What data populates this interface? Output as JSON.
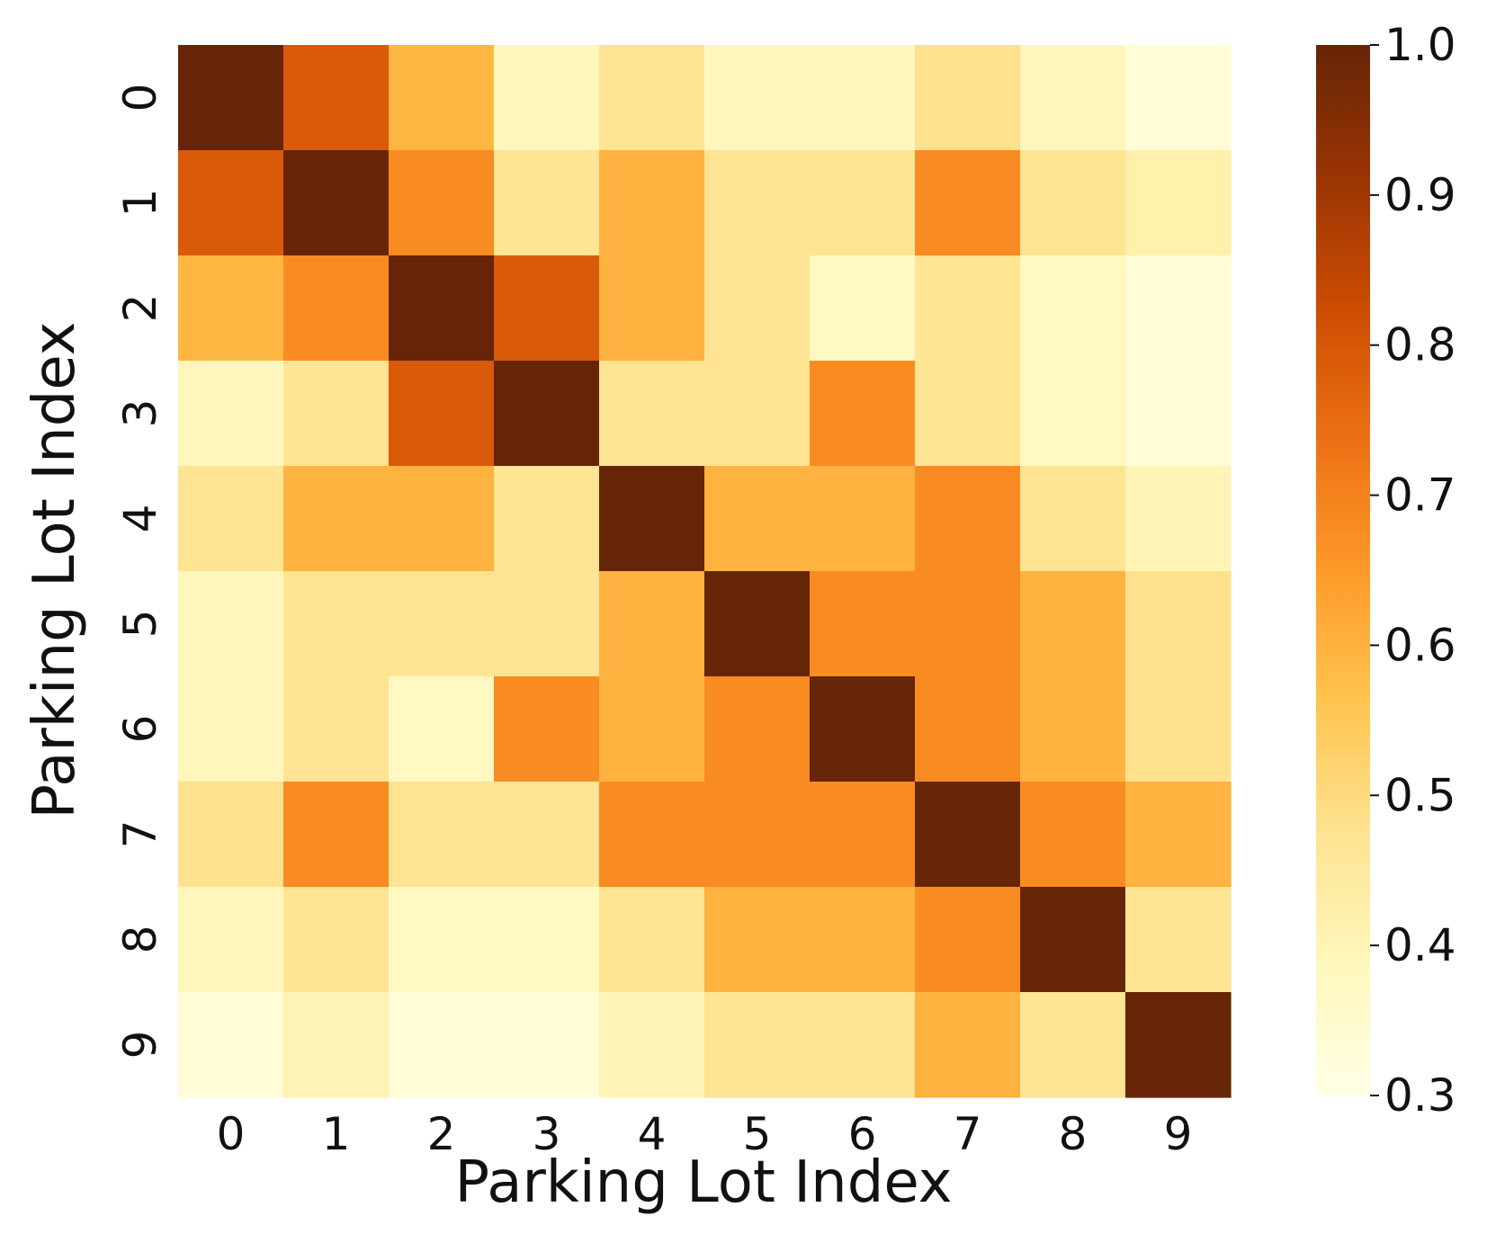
{
  "chart_data": {
    "type": "heatmap",
    "xlabel": "Parking Lot Index",
    "ylabel": "Parking Lot Index",
    "x_categories": [
      "0",
      "1",
      "2",
      "3",
      "4",
      "5",
      "6",
      "7",
      "8",
      "9"
    ],
    "y_categories": [
      "0",
      "1",
      "2",
      "3",
      "4",
      "5",
      "6",
      "7",
      "8",
      "9"
    ],
    "values": [
      [
        1.0,
        0.79,
        0.59,
        0.39,
        0.47,
        0.39,
        0.39,
        0.48,
        0.39,
        0.33
      ],
      [
        0.79,
        1.0,
        0.68,
        0.47,
        0.6,
        0.47,
        0.47,
        0.68,
        0.47,
        0.42
      ],
      [
        0.59,
        0.68,
        1.0,
        0.79,
        0.6,
        0.47,
        0.38,
        0.47,
        0.38,
        0.33
      ],
      [
        0.39,
        0.47,
        0.79,
        1.0,
        0.47,
        0.47,
        0.68,
        0.47,
        0.38,
        0.33
      ],
      [
        0.47,
        0.6,
        0.6,
        0.47,
        1.0,
        0.6,
        0.6,
        0.68,
        0.47,
        0.4
      ],
      [
        0.39,
        0.47,
        0.47,
        0.47,
        0.6,
        1.0,
        0.68,
        0.68,
        0.6,
        0.48
      ],
      [
        0.39,
        0.47,
        0.38,
        0.68,
        0.6,
        0.68,
        1.0,
        0.68,
        0.6,
        0.48
      ],
      [
        0.48,
        0.68,
        0.47,
        0.47,
        0.68,
        0.68,
        0.68,
        1.0,
        0.68,
        0.6
      ],
      [
        0.39,
        0.47,
        0.38,
        0.38,
        0.47,
        0.6,
        0.6,
        0.68,
        1.0,
        0.47
      ],
      [
        0.33,
        0.4,
        0.33,
        0.33,
        0.4,
        0.47,
        0.47,
        0.6,
        0.47,
        1.0
      ]
    ],
    "colorbar": {
      "min": 0.3,
      "max": 1.0,
      "ticks": [
        "0.3",
        "0.4",
        "0.5",
        "0.6",
        "0.7",
        "0.8",
        "0.9",
        "1.0"
      ],
      "colormap": "YlOrBr",
      "stops": [
        "#ffffe5",
        "#fff7bc",
        "#fee391",
        "#fec44f",
        "#fe9929",
        "#ec7014",
        "#cc4c02",
        "#993404",
        "#662506"
      ]
    },
    "grid": false
  }
}
